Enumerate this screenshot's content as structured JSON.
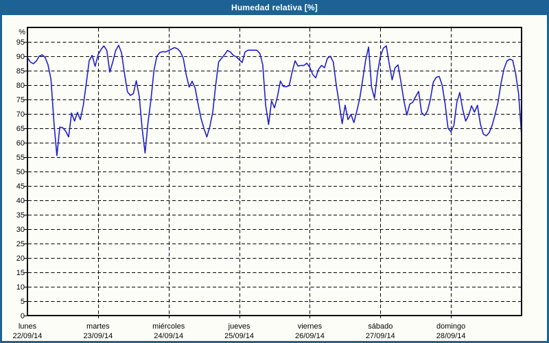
{
  "window": {
    "title": "Humedad relativa [%]"
  },
  "colors": {
    "banner": "#1d6295",
    "line": "#1e1ed2",
    "background": "#fdfdf8",
    "grid": "#000000",
    "text": "#000000"
  },
  "chart_data": {
    "type": "line",
    "title": "Humedad relativa [%]",
    "ylabel": "%",
    "y_unit_label": "%",
    "ylim": [
      0,
      100
    ],
    "ytick_step": 5,
    "yticks": [
      0,
      5,
      10,
      15,
      20,
      25,
      30,
      35,
      40,
      45,
      50,
      55,
      60,
      65,
      70,
      75,
      80,
      85,
      90,
      95
    ],
    "grid": {
      "horizontal": "dashed",
      "vertical": "dashed-at-day-boundaries"
    },
    "legend": "none",
    "sample_interval_hours": 1,
    "points_per_day": 24,
    "days": [
      {
        "name": "lunes",
        "date": "22/09/14"
      },
      {
        "name": "martes",
        "date": "23/09/14"
      },
      {
        "name": "miércoles",
        "date": "24/09/14"
      },
      {
        "name": "jueves",
        "date": "25/09/14"
      },
      {
        "name": "viernes",
        "date": "26/09/14"
      },
      {
        "name": "sábado",
        "date": "27/09/14"
      },
      {
        "name": "domingo",
        "date": "28/09/14"
      }
    ],
    "series": [
      {
        "name": "Humedad relativa [%]",
        "values": [
          89.5,
          88,
          87.4,
          88.3,
          90,
          90.5,
          89.6,
          87,
          82,
          67,
          55.5,
          65.4,
          65.2,
          64,
          62,
          70.3,
          67.5,
          70.5,
          68,
          73,
          80.5,
          88.5,
          90.3,
          86.5,
          90.5,
          92.3,
          93.6,
          92,
          84.5,
          88,
          92,
          93.8,
          91.2,
          84,
          77.7,
          76.4,
          77,
          81.5,
          76.1,
          65,
          56.4,
          67,
          75,
          85,
          90,
          91.3,
          91.6,
          91.5,
          92,
          92.5,
          93,
          92.6,
          91.5,
          89.3,
          83.5,
          79.3,
          81.3,
          79,
          73.5,
          68.5,
          65,
          62,
          65.5,
          70.6,
          80,
          88,
          89.3,
          90.5,
          92,
          91.5,
          90.3,
          89.8,
          88.8,
          87.8,
          91.5,
          92.1,
          92.1,
          92.1,
          92.1,
          91,
          87,
          73,
          66.3,
          74.5,
          72.1,
          76,
          81.4,
          79.5,
          79.4,
          79.8,
          84.5,
          88.4,
          86.6,
          86.8,
          86.8,
          87.6,
          86.2,
          83.7,
          82.5,
          85.5,
          86.8,
          86,
          89.3,
          90,
          88,
          80,
          73.5,
          66.6,
          73,
          68,
          69.8,
          67,
          71,
          75.5,
          82,
          88.8,
          93.2,
          79.3,
          75.4,
          84,
          90,
          92.8,
          93.6,
          87.5,
          81.8,
          86,
          87,
          81,
          74.5,
          69.6,
          73.4,
          74,
          76,
          77.8,
          70.5,
          69.4,
          71,
          75,
          81,
          82.7,
          83,
          80,
          73.5,
          65,
          63.8,
          66,
          74,
          77.4,
          71.5,
          67.5,
          69.5,
          72.8,
          70.6,
          73,
          66.5,
          63,
          62.4,
          63.5,
          66,
          69.7,
          74,
          80.5,
          85.5,
          88.3,
          89,
          88.6,
          84,
          77,
          62.5
        ]
      }
    ]
  }
}
